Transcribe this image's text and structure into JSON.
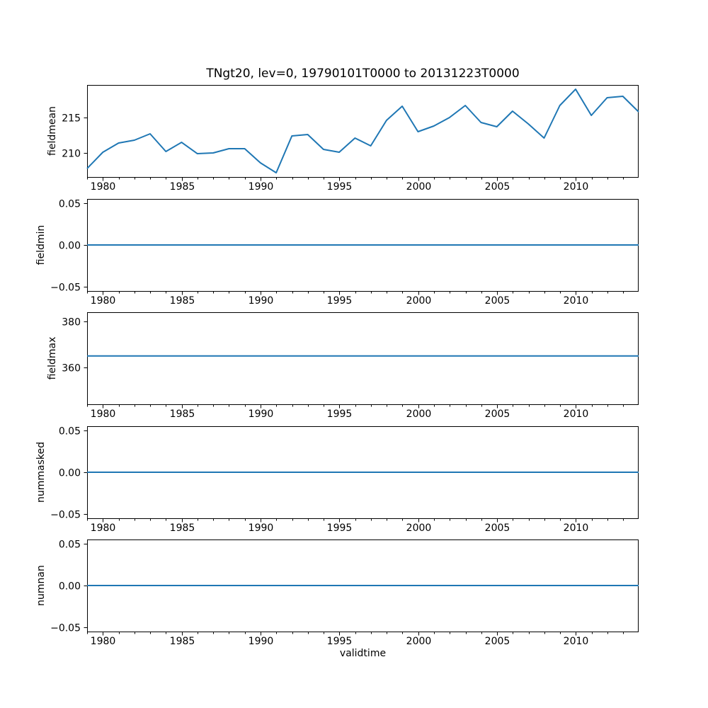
{
  "figure": {
    "title": "TNgt20, lev=0, 19790101T0000 to 20131223T0000",
    "background_color": "#ffffff",
    "line_color": "#1f77b4",
    "axis_color": "#000000",
    "grid": false,
    "legend": "none"
  },
  "x_axis": {
    "label": "validtime",
    "xlim": [
      1979.0,
      2013.976
    ],
    "xticks": [
      1980,
      1985,
      1990,
      1995,
      2000,
      2005,
      2010
    ],
    "xtick_labels": [
      "1980",
      "1985",
      "1990",
      "1995",
      "2000",
      "2005",
      "2010"
    ],
    "minor_ticks_every": 1
  },
  "chart_data": [
    {
      "type": "line",
      "ylabel": "fieldmean",
      "ylim": [
        206.6,
        219.6
      ],
      "yticks": [
        210,
        215
      ],
      "ytick_labels": [
        "210",
        "215"
      ],
      "x": [
        1979.0,
        1979.999,
        1980.999,
        1981.998,
        1982.997,
        1983.997,
        1984.996,
        1985.995,
        1986.995,
        1987.994,
        1988.993,
        1989.992,
        1990.992,
        1991.991,
        1992.99,
        1993.99,
        1994.989,
        1995.988,
        1996.988,
        1997.987,
        1998.986,
        1999.986,
        2000.985,
        2001.984,
        2002.984,
        2003.983,
        2004.982,
        2005.981,
        2006.981,
        2007.98,
        2008.979,
        2009.979,
        2010.978,
        2011.977,
        2012.977,
        2013.976
      ],
      "y": [
        207.8,
        210.1,
        211.4,
        211.8,
        212.7,
        210.2,
        211.5,
        209.9,
        210.0,
        210.6,
        210.6,
        208.6,
        207.2,
        212.4,
        212.6,
        210.5,
        210.1,
        212.1,
        211.0,
        214.6,
        216.6,
        213.0,
        213.8,
        215.0,
        216.7,
        214.3,
        213.7,
        215.9,
        214.1,
        212.1,
        216.7,
        219.0,
        215.3,
        217.8,
        218.0,
        215.8
      ]
    },
    {
      "type": "line",
      "ylabel": "fieldmin",
      "ylim": [
        -0.055,
        0.055
      ],
      "yticks": [
        -0.05,
        0.0,
        0.05
      ],
      "ytick_labels": [
        "−0.05",
        "0.00",
        "0.05"
      ],
      "x": [
        1979.0,
        2013.976
      ],
      "y": [
        0.0,
        0.0
      ]
    },
    {
      "type": "line",
      "ylabel": "fieldmax",
      "ylim": [
        344.0,
        384.0
      ],
      "yticks": [
        360,
        380
      ],
      "ytick_labels": [
        "360",
        "380"
      ],
      "x": [
        1979.0,
        2013.976
      ],
      "y": [
        365.0,
        365.0
      ]
    },
    {
      "type": "line",
      "ylabel": "nummasked",
      "ylim": [
        -0.055,
        0.055
      ],
      "yticks": [
        -0.05,
        0.0,
        0.05
      ],
      "ytick_labels": [
        "−0.05",
        "0.00",
        "0.05"
      ],
      "x": [
        1979.0,
        2013.976
      ],
      "y": [
        0.0,
        0.0
      ]
    },
    {
      "type": "line",
      "ylabel": "numnan",
      "ylim": [
        -0.055,
        0.055
      ],
      "yticks": [
        -0.05,
        0.0,
        0.05
      ],
      "ytick_labels": [
        "−0.05",
        "0.00",
        "0.05"
      ],
      "x": [
        1979.0,
        2013.976
      ],
      "y": [
        0.0,
        0.0
      ]
    }
  ]
}
